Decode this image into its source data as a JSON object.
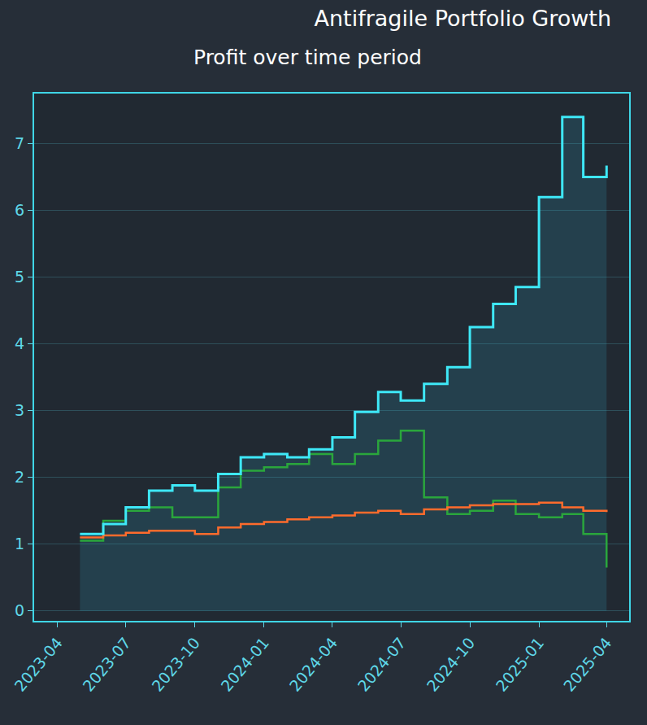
{
  "chart_data": {
    "type": "line",
    "title": "Antifragile Portfolio Growth",
    "subtitle": "Profit over time period",
    "x": [
      "2023-05",
      "2023-06",
      "2023-07",
      "2023-08",
      "2023-09",
      "2023-10",
      "2023-11",
      "2023-12",
      "2024-01",
      "2024-02",
      "2024-03",
      "2024-04",
      "2024-05",
      "2024-06",
      "2024-07",
      "2024-08",
      "2024-09",
      "2024-10",
      "2024-11",
      "2024-12",
      "2025-01",
      "2025-02",
      "2025-03",
      "2025-04"
    ],
    "series": [
      {
        "color": "#3ee8f7",
        "values": [
          1.15,
          1.3,
          1.55,
          1.8,
          1.88,
          1.8,
          2.05,
          2.3,
          2.35,
          2.3,
          2.42,
          2.6,
          2.98,
          3.28,
          3.15,
          3.4,
          3.65,
          4.25,
          4.6,
          4.85,
          6.2,
          7.4,
          6.5,
          6.67
        ]
      },
      {
        "color": "#2aa63c",
        "values": [
          1.05,
          1.35,
          1.5,
          1.55,
          1.4,
          1.4,
          1.85,
          2.1,
          2.15,
          2.2,
          2.35,
          2.2,
          2.35,
          2.55,
          2.7,
          1.7,
          1.45,
          1.5,
          1.65,
          1.45,
          1.4,
          1.45,
          1.15,
          0.65
        ]
      },
      {
        "color": "#ff6b2c",
        "values": [
          1.1,
          1.13,
          1.17,
          1.2,
          1.2,
          1.15,
          1.25,
          1.3,
          1.33,
          1.37,
          1.4,
          1.43,
          1.47,
          1.5,
          1.45,
          1.52,
          1.55,
          1.58,
          1.6,
          1.6,
          1.62,
          1.55,
          1.5,
          1.48
        ]
      }
    ],
    "xlim": [
      "2023-03",
      "2025-05"
    ],
    "xticks": [
      "2023-04",
      "2023-07",
      "2023-10",
      "2024-01",
      "2024-04",
      "2024-07",
      "2024-10",
      "2025-01",
      "2025-04"
    ],
    "ylim": [
      -0.15,
      7.75
    ],
    "yticks": [
      0,
      1,
      2,
      3,
      4,
      5,
      6,
      7
    ],
    "grid": true
  }
}
